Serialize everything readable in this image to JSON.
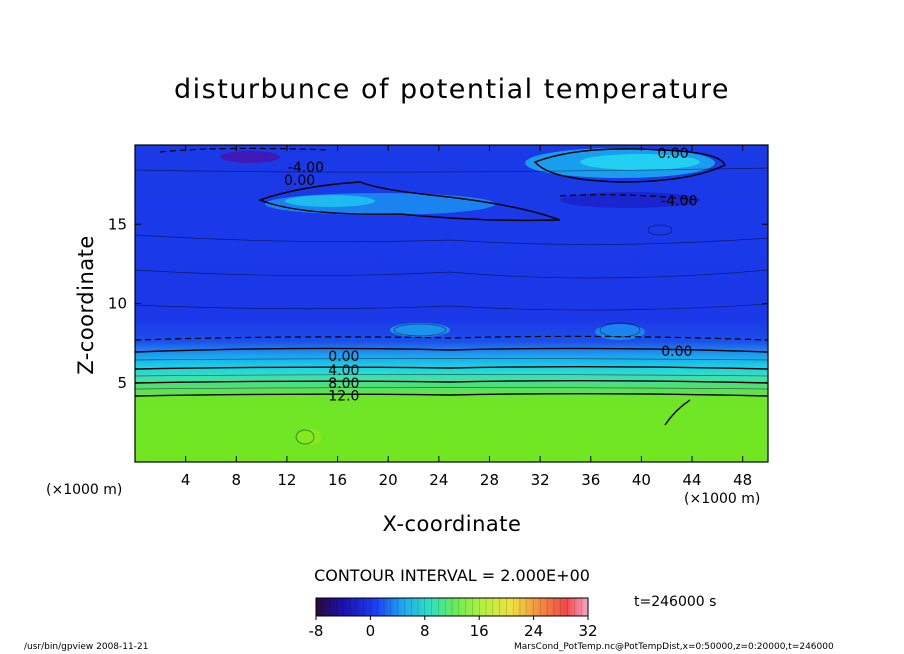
{
  "chart_data": {
    "type": "heatmap",
    "title": "disturbunce of potential temperature",
    "xlabel": "X-coordinate",
    "ylabel": "Z-coordinate",
    "x_unit": "(×1000 m)",
    "y_unit": "(×1000 m)",
    "xlim": [
      0,
      50
    ],
    "ylim": [
      0,
      20
    ],
    "x_ticks": [
      4,
      8,
      12,
      16,
      20,
      24,
      28,
      32,
      36,
      40,
      44,
      48
    ],
    "y_ticks": [
      5,
      10,
      15
    ],
    "contour_interval": "CONTOUR INTERVAL = 2.000E+00",
    "contour_labels": [
      {
        "text": "-4.00",
        "x": 13.5,
        "z": 18.6
      },
      {
        "text": "0.00",
        "x": 13.0,
        "z": 17.8
      },
      {
        "text": "0.00",
        "x": 42.5,
        "z": 19.5
      },
      {
        "text": "-4.00",
        "x": 43.0,
        "z": 16.5
      },
      {
        "text": "0.00",
        "x": 42.8,
        "z": 7.0
      },
      {
        "text": "0.00",
        "x": 16.5,
        "z": 6.7
      },
      {
        "text": "4.00",
        "x": 16.5,
        "z": 5.8
      },
      {
        "text": "8.00",
        "x": 16.5,
        "z": 5.0
      },
      {
        "text": "12.0",
        "x": 16.5,
        "z": 4.2
      }
    ],
    "colorbar": {
      "min": -8,
      "max": 32,
      "ticks": [
        -8,
        0,
        8,
        16,
        24,
        32
      ]
    },
    "time": "t=246000 s",
    "grid": false
  },
  "footer": {
    "left": "/usr/bin/gpview   2008-11-21",
    "right": "MarsCond_PotTemp.nc@PotTempDist,x=0:50000,z=0:20000,t=246000"
  },
  "colors": {
    "upper_field": "#1e32e6",
    "lower_field": "#6ee61e"
  }
}
